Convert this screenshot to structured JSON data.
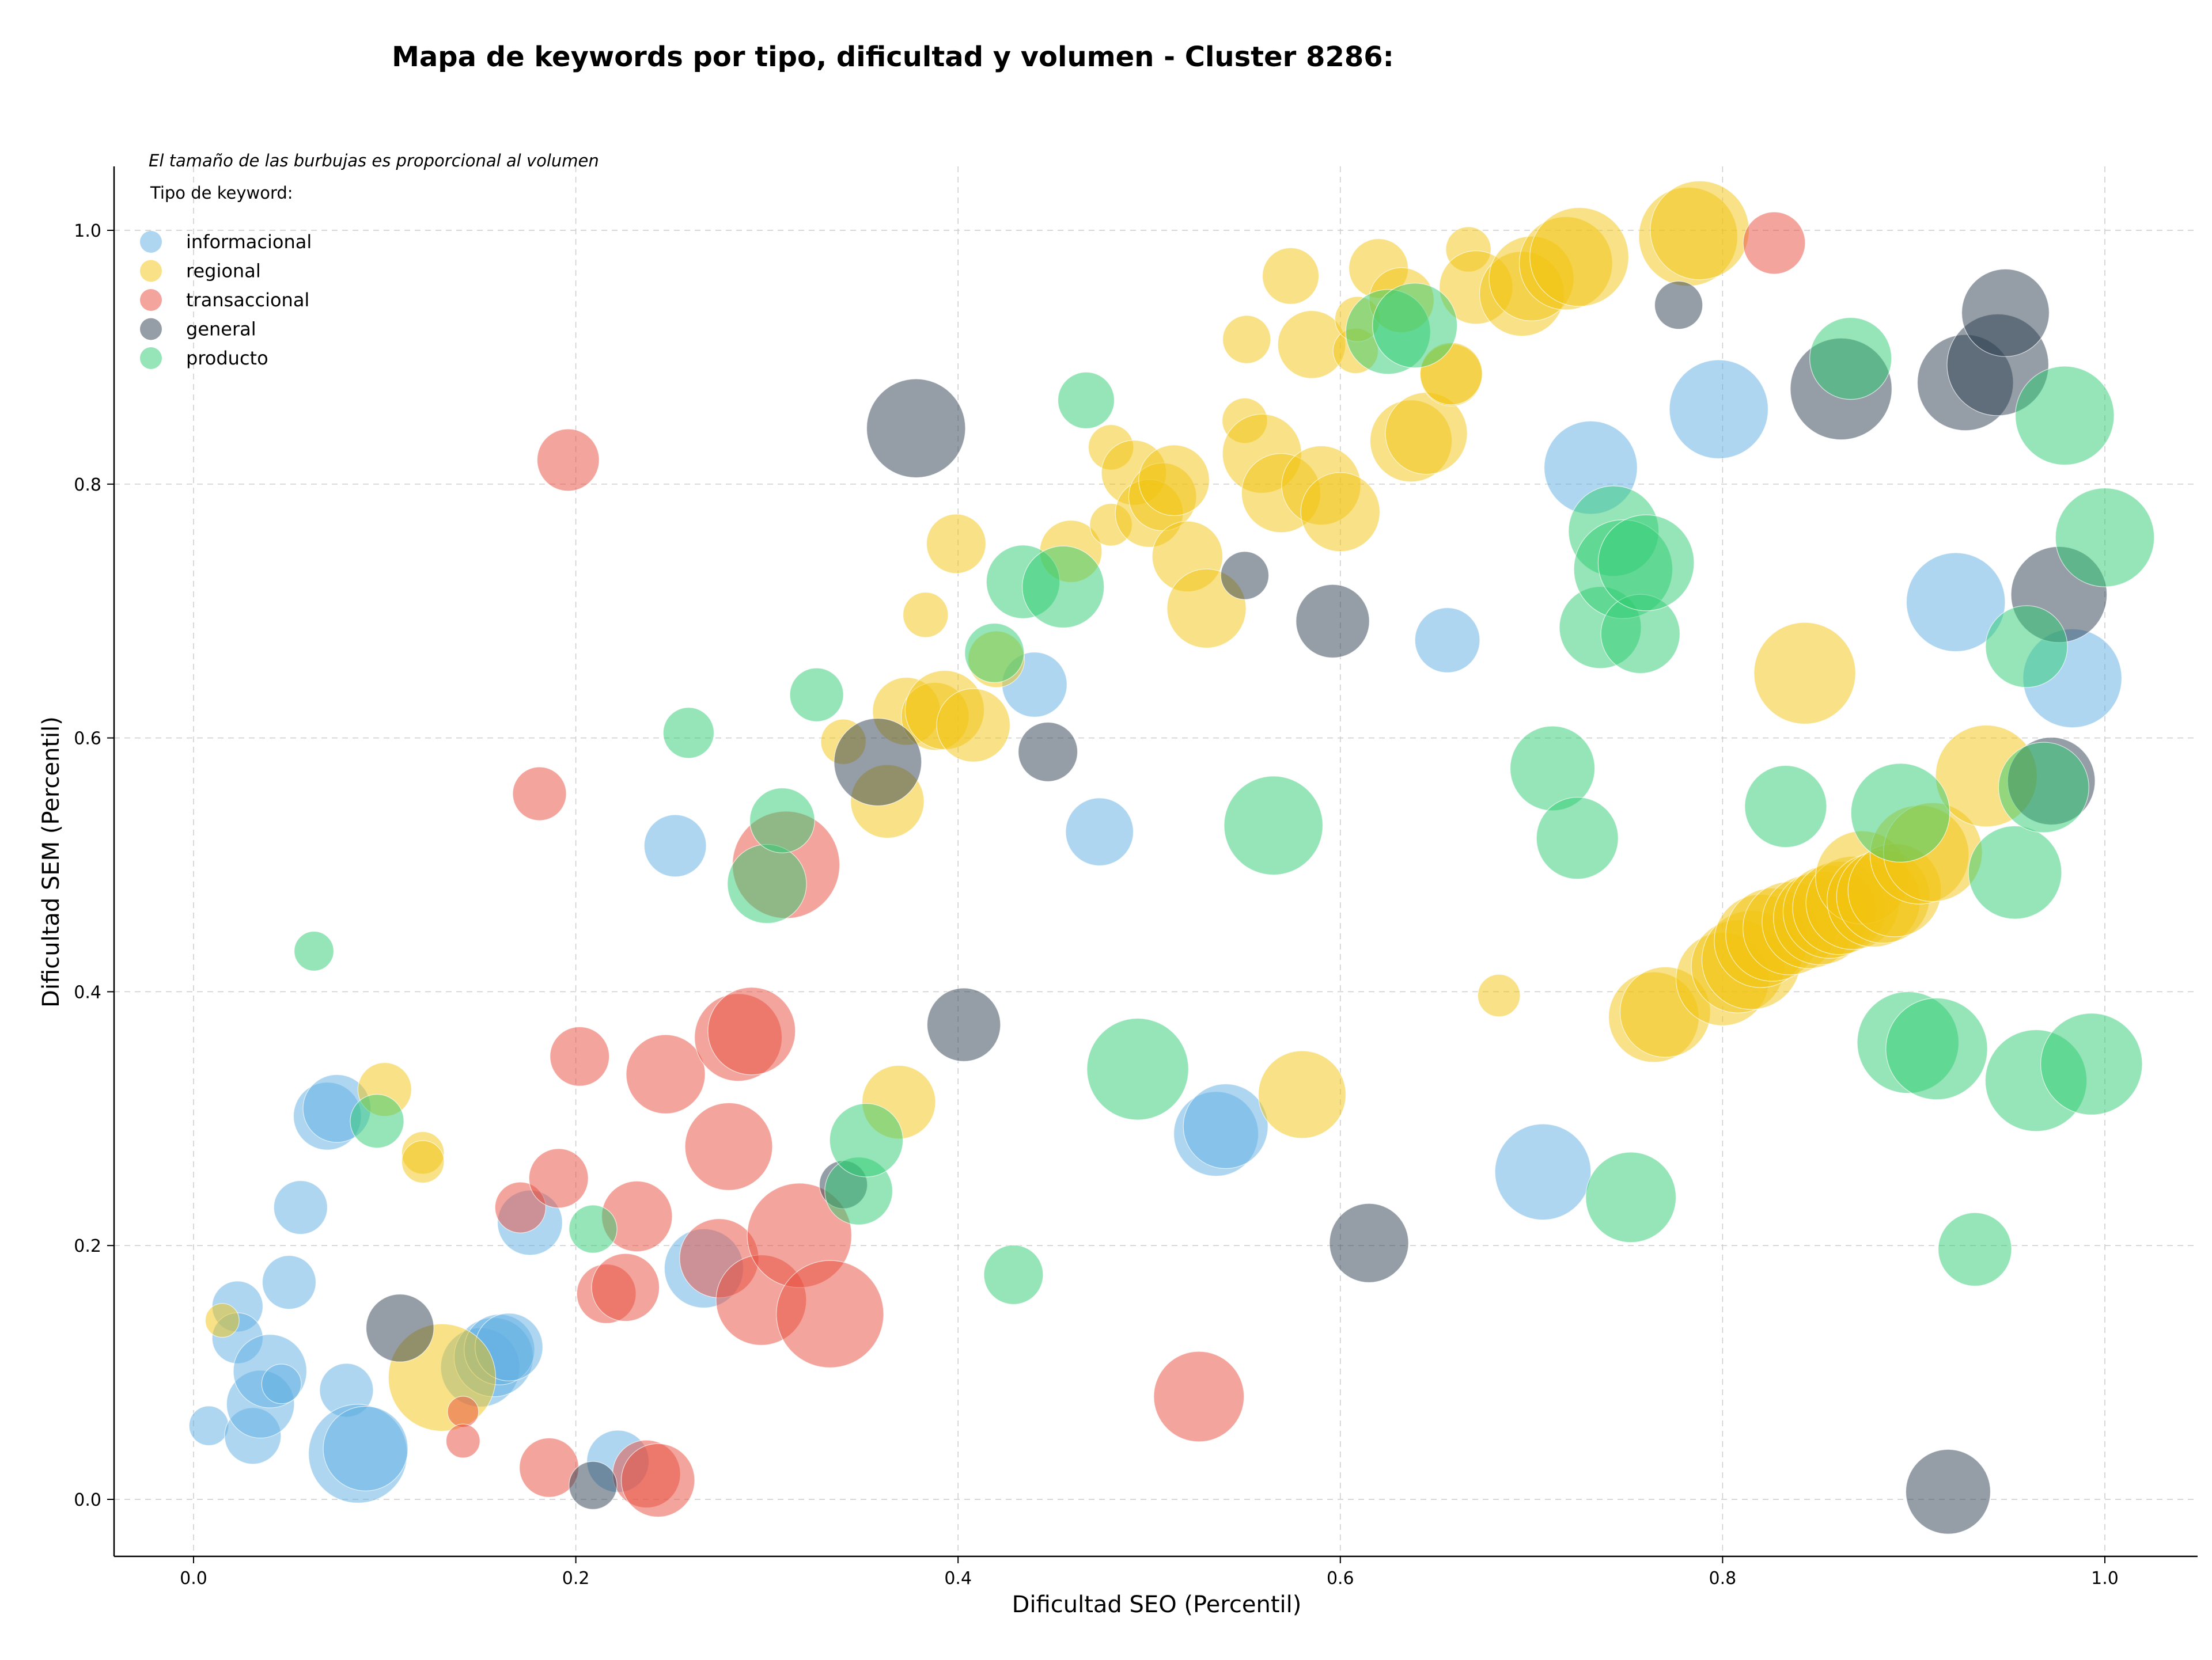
{
  "chart_data": {
    "type": "scatter",
    "title": "Mapa de keywords por tipo, dificultad y volumen - Cluster 8286:",
    "xlabel": "Dificultad SEO (Percentil)",
    "ylabel": "Dificultad SEM (Percentil)",
    "xlim": [
      -0.04,
      1.05
    ],
    "ylim": [
      -0.045,
      1.05
    ],
    "xticks": [
      "0.0",
      "0.2",
      "0.4",
      "0.6",
      "0.8",
      "1.0"
    ],
    "yticks": [
      "0.0",
      "0.2",
      "0.4",
      "0.6",
      "0.8",
      "1.0"
    ],
    "grid": true,
    "annotation": "El tamaño de las burbujas es proporcional al volumen",
    "legend_title": "Tipo de keyword:",
    "legend_position": "top-left",
    "encoding": "x = SEO difficulty percentile, y = SEM difficulty percentile, r = relative volume",
    "series": [
      {
        "name": "informacional",
        "color": "#5DADE2",
        "points": [
          [
            0.008,
            0.058,
            14
          ],
          [
            0.023,
            0.152,
            18
          ],
          [
            0.023,
            0.127,
            18
          ],
          [
            0.031,
            0.05,
            20
          ],
          [
            0.035,
            0.075,
            24
          ],
          [
            0.04,
            0.101,
            26
          ],
          [
            0.046,
            0.091,
            14
          ],
          [
            0.05,
            0.171,
            19
          ],
          [
            0.056,
            0.23,
            19
          ],
          [
            0.07,
            0.302,
            24
          ],
          [
            0.075,
            0.308,
            24
          ],
          [
            0.08,
            0.086,
            19
          ],
          [
            0.086,
            0.036,
            35
          ],
          [
            0.09,
            0.04,
            30
          ],
          [
            0.15,
            0.104,
            28
          ],
          [
            0.157,
            0.112,
            28
          ],
          [
            0.16,
            0.118,
            25
          ],
          [
            0.165,
            0.12,
            24
          ],
          [
            0.176,
            0.218,
            23
          ],
          [
            0.222,
            0.03,
            22
          ],
          [
            0.252,
            0.515,
            22
          ],
          [
            0.267,
            0.182,
            28
          ],
          [
            0.44,
            0.642,
            23
          ],
          [
            0.474,
            0.526,
            24
          ],
          [
            0.535,
            0.288,
            30
          ],
          [
            0.54,
            0.294,
            30
          ],
          [
            0.656,
            0.677,
            23
          ],
          [
            0.706,
            0.258,
            34
          ],
          [
            0.731,
            0.813,
            33
          ],
          [
            0.798,
            0.859,
            35
          ],
          [
            0.922,
            0.707,
            35
          ],
          [
            0.983,
            0.647,
            35
          ]
        ]
      },
      {
        "name": "regional",
        "color": "#F1C40F",
        "points": [
          [
            0.015,
            0.141,
            12
          ],
          [
            0.1,
            0.323,
            19
          ],
          [
            0.12,
            0.273,
            15
          ],
          [
            0.12,
            0.266,
            15
          ],
          [
            0.13,
            0.096,
            38
          ],
          [
            0.34,
            0.597,
            16
          ],
          [
            0.363,
            0.55,
            26
          ],
          [
            0.369,
            0.313,
            26
          ],
          [
            0.373,
            0.621,
            24
          ],
          [
            0.388,
            0.617,
            24
          ],
          [
            0.393,
            0.622,
            28
          ],
          [
            0.399,
            0.753,
            21
          ],
          [
            0.383,
            0.697,
            16
          ],
          [
            0.408,
            0.61,
            26
          ],
          [
            0.42,
            0.662,
            20
          ],
          [
            0.459,
            0.747,
            22
          ],
          [
            0.48,
            0.829,
            16
          ],
          [
            0.48,
            0.768,
            15
          ],
          [
            0.492,
            0.809,
            23
          ],
          [
            0.5,
            0.777,
            24
          ],
          [
            0.507,
            0.79,
            24
          ],
          [
            0.513,
            0.803,
            25
          ],
          [
            0.52,
            0.743,
            25
          ],
          [
            0.53,
            0.702,
            28
          ],
          [
            0.55,
            0.85,
            16
          ],
          [
            0.551,
            0.914,
            17
          ],
          [
            0.559,
            0.824,
            28
          ],
          [
            0.569,
            0.793,
            28
          ],
          [
            0.574,
            0.964,
            20
          ],
          [
            0.58,
            0.319,
            31
          ],
          [
            0.585,
            0.91,
            24
          ],
          [
            0.59,
            0.799,
            28
          ],
          [
            0.6,
            0.778,
            28
          ],
          [
            0.608,
            0.905,
            16
          ],
          [
            0.609,
            0.93,
            16
          ],
          [
            0.62,
            0.97,
            21
          ],
          [
            0.632,
            0.945,
            23
          ],
          [
            0.637,
            0.834,
            29
          ],
          [
            0.645,
            0.84,
            29
          ],
          [
            0.658,
            0.886,
            22
          ],
          [
            0.658,
            0.887,
            22
          ],
          [
            0.667,
            0.985,
            16
          ],
          [
            0.671,
            0.955,
            26
          ],
          [
            0.683,
            0.397,
            15
          ],
          [
            0.695,
            0.95,
            30
          ],
          [
            0.7,
            0.962,
            30
          ],
          [
            0.718,
            0.974,
            33
          ],
          [
            0.725,
            0.979,
            35
          ],
          [
            0.782,
            0.995,
            35
          ],
          [
            0.788,
            1.0,
            35
          ],
          [
            0.764,
            0.38,
            32
          ],
          [
            0.77,
            0.384,
            32
          ],
          [
            0.8,
            0.41,
            33
          ],
          [
            0.808,
            0.42,
            33
          ],
          [
            0.815,
            0.425,
            35
          ],
          [
            0.82,
            0.44,
            33
          ],
          [
            0.826,
            0.445,
            33
          ],
          [
            0.835,
            0.45,
            33
          ],
          [
            0.843,
            0.651,
            36
          ],
          [
            0.845,
            0.455,
            33
          ],
          [
            0.851,
            0.458,
            33
          ],
          [
            0.856,
            0.463,
            33
          ],
          [
            0.861,
            0.466,
            33
          ],
          [
            0.868,
            0.47,
            33
          ],
          [
            0.873,
            0.49,
            33
          ],
          [
            0.879,
            0.472,
            33
          ],
          [
            0.884,
            0.475,
            33
          ],
          [
            0.89,
            0.48,
            33
          ],
          [
            0.903,
            0.508,
            35
          ],
          [
            0.91,
            0.51,
            35
          ],
          [
            0.938,
            0.57,
            36
          ]
        ]
      },
      {
        "name": "transaccional",
        "color": "#E74C3C",
        "points": [
          [
            0.141,
            0.069,
            11
          ],
          [
            0.141,
            0.046,
            12
          ],
          [
            0.171,
            0.23,
            18
          ],
          [
            0.181,
            0.556,
            19
          ],
          [
            0.186,
            0.025,
            21
          ],
          [
            0.191,
            0.253,
            21
          ],
          [
            0.196,
            0.819,
            22
          ],
          [
            0.202,
            0.349,
            21
          ],
          [
            0.216,
            0.162,
            21
          ],
          [
            0.226,
            0.167,
            24
          ],
          [
            0.232,
            0.223,
            25
          ],
          [
            0.237,
            0.02,
            24
          ],
          [
            0.243,
            0.015,
            26
          ],
          [
            0.247,
            0.335,
            28
          ],
          [
            0.275,
            0.19,
            28
          ],
          [
            0.28,
            0.278,
            31
          ],
          [
            0.285,
            0.364,
            31
          ],
          [
            0.292,
            0.369,
            31
          ],
          [
            0.297,
            0.157,
            32
          ],
          [
            0.31,
            0.5,
            38
          ],
          [
            0.317,
            0.208,
            37
          ],
          [
            0.333,
            0.146,
            38
          ],
          [
            0.526,
            0.081,
            32
          ],
          [
            0.827,
            0.99,
            22
          ]
        ]
      },
      {
        "name": "general",
        "color": "#2C3E50",
        "points": [
          [
            0.108,
            0.135,
            24
          ],
          [
            0.209,
            0.011,
            17
          ],
          [
            0.34,
            0.248,
            17
          ],
          [
            0.358,
            0.581,
            31
          ],
          [
            0.378,
            0.844,
            35
          ],
          [
            0.403,
            0.374,
            26
          ],
          [
            0.447,
            0.589,
            21
          ],
          [
            0.55,
            0.728,
            17
          ],
          [
            0.596,
            0.692,
            26
          ],
          [
            0.615,
            0.202,
            28
          ],
          [
            0.777,
            0.941,
            17
          ],
          [
            0.862,
            0.875,
            36
          ],
          [
            0.927,
            0.88,
            34
          ],
          [
            0.944,
            0.894,
            36
          ],
          [
            0.948,
            0.935,
            31
          ],
          [
            0.918,
            0.006,
            30
          ],
          [
            0.972,
            0.566,
            31
          ],
          [
            0.976,
            0.713,
            34
          ]
        ]
      },
      {
        "name": "producto",
        "color": "#2ECC71",
        "points": [
          [
            0.063,
            0.432,
            14
          ],
          [
            0.096,
            0.298,
            19
          ],
          [
            0.209,
            0.213,
            17
          ],
          [
            0.259,
            0.604,
            18
          ],
          [
            0.3,
            0.485,
            28
          ],
          [
            0.308,
            0.535,
            23
          ],
          [
            0.326,
            0.634,
            19
          ],
          [
            0.348,
            0.243,
            24
          ],
          [
            0.352,
            0.283,
            26
          ],
          [
            0.419,
            0.667,
            21
          ],
          [
            0.429,
            0.177,
            21
          ],
          [
            0.434,
            0.723,
            26
          ],
          [
            0.455,
            0.719,
            29
          ],
          [
            0.467,
            0.866,
            20
          ],
          [
            0.494,
            0.339,
            36
          ],
          [
            0.565,
            0.531,
            35
          ],
          [
            0.625,
            0.92,
            30
          ],
          [
            0.639,
            0.925,
            30
          ],
          [
            0.711,
            0.576,
            30
          ],
          [
            0.724,
            0.521,
            29
          ],
          [
            0.736,
            0.687,
            29
          ],
          [
            0.743,
            0.763,
            32
          ],
          [
            0.748,
            0.733,
            35
          ],
          [
            0.757,
            0.682,
            28
          ],
          [
            0.76,
            0.738,
            34
          ],
          [
            0.752,
            0.238,
            32
          ],
          [
            0.833,
            0.546,
            29
          ],
          [
            0.867,
            0.899,
            29
          ],
          [
            0.893,
            0.541,
            35
          ],
          [
            0.897,
            0.36,
            36
          ],
          [
            0.912,
            0.355,
            36
          ],
          [
            0.932,
            0.197,
            26
          ],
          [
            0.953,
            0.494,
            33
          ],
          [
            0.959,
            0.672,
            29
          ],
          [
            0.964,
            0.33,
            36
          ],
          [
            0.968,
            0.561,
            32
          ],
          [
            0.979,
            0.854,
            35
          ],
          [
            0.993,
            0.343,
            36
          ],
          [
            1.0,
            0.758,
            35
          ]
        ]
      }
    ]
  }
}
